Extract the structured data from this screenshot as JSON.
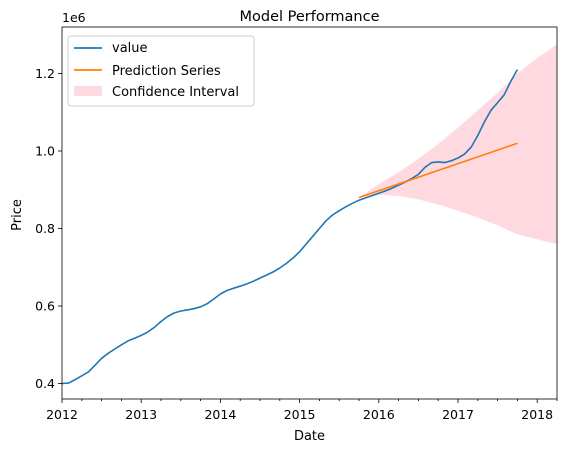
{
  "chart_data": {
    "type": "line",
    "title": "Model Performance",
    "xlabel": "Date",
    "ylabel": "Price",
    "y_offset_label": "1e6",
    "xlim": [
      "2012-01",
      "2018-04"
    ],
    "ylim": [
      360000,
      1320000
    ],
    "x_ticks": [
      "2012",
      "2013",
      "2014",
      "2015",
      "2016",
      "2017",
      "2018"
    ],
    "y_ticks": [
      {
        "value": 400000,
        "label": "0.4"
      },
      {
        "value": 600000,
        "label": "0.6"
      },
      {
        "value": 800000,
        "label": "0.8"
      },
      {
        "value": 1000000,
        "label": "1.0"
      },
      {
        "value": 1200000,
        "label": "1.2"
      }
    ],
    "grid": false,
    "legend_position": "top-left",
    "series": [
      {
        "name": "value",
        "color": "#1f77b4",
        "points": [
          [
            "2012-01",
            400000
          ],
          [
            "2012-02",
            401000
          ],
          [
            "2012-03",
            410000
          ],
          [
            "2012-04",
            420000
          ],
          [
            "2012-05",
            430000
          ],
          [
            "2012-06",
            447000
          ],
          [
            "2012-07",
            465000
          ],
          [
            "2012-08",
            478000
          ],
          [
            "2012-09",
            489000
          ],
          [
            "2012-10",
            500000
          ],
          [
            "2012-11",
            510000
          ],
          [
            "2012-12",
            517000
          ],
          [
            "2013-01",
            524000
          ],
          [
            "2013-02",
            533000
          ],
          [
            "2013-03",
            545000
          ],
          [
            "2013-04",
            560000
          ],
          [
            "2013-05",
            573000
          ],
          [
            "2013-06",
            582000
          ],
          [
            "2013-07",
            587000
          ],
          [
            "2013-08",
            590000
          ],
          [
            "2013-09",
            593000
          ],
          [
            "2013-10",
            598000
          ],
          [
            "2013-11",
            606000
          ],
          [
            "2013-12",
            618000
          ],
          [
            "2014-01",
            631000
          ],
          [
            "2014-02",
            640000
          ],
          [
            "2014-03",
            646000
          ],
          [
            "2014-04",
            651000
          ],
          [
            "2014-05",
            657000
          ],
          [
            "2014-06",
            664000
          ],
          [
            "2014-07",
            672000
          ],
          [
            "2014-08",
            680000
          ],
          [
            "2014-09",
            688000
          ],
          [
            "2014-10",
            698000
          ],
          [
            "2014-11",
            710000
          ],
          [
            "2014-12",
            724000
          ],
          [
            "2015-01",
            740000
          ],
          [
            "2015-02",
            760000
          ],
          [
            "2015-03",
            780000
          ],
          [
            "2015-04",
            800000
          ],
          [
            "2015-05",
            820000
          ],
          [
            "2015-06",
            835000
          ],
          [
            "2015-07",
            846000
          ],
          [
            "2015-08",
            856000
          ],
          [
            "2015-09",
            865000
          ],
          [
            "2015-10",
            873000
          ],
          [
            "2015-11",
            879000
          ],
          [
            "2015-12",
            885000
          ],
          [
            "2016-01",
            891000
          ],
          [
            "2016-02",
            897000
          ],
          [
            "2016-03",
            904000
          ],
          [
            "2016-04",
            912000
          ],
          [
            "2016-05",
            920000
          ],
          [
            "2016-06",
            929000
          ],
          [
            "2016-07",
            940000
          ],
          [
            "2016-08",
            958000
          ],
          [
            "2016-09",
            970000
          ],
          [
            "2016-10",
            972000
          ],
          [
            "2016-11",
            970000
          ],
          [
            "2016-12",
            975000
          ],
          [
            "2017-01",
            982000
          ],
          [
            "2017-02",
            992000
          ],
          [
            "2017-03",
            1010000
          ],
          [
            "2017-04",
            1040000
          ],
          [
            "2017-05",
            1075000
          ],
          [
            "2017-06",
            1105000
          ],
          [
            "2017-07",
            1125000
          ],
          [
            "2017-08",
            1145000
          ],
          [
            "2017-09",
            1180000
          ],
          [
            "2017-10",
            1210000
          ]
        ]
      },
      {
        "name": "Prediction Series",
        "color": "#ff7f0e",
        "points": [
          [
            "2015-10",
            880000
          ],
          [
            "2017-10",
            1020000
          ]
        ]
      }
    ],
    "confidence_interval": {
      "name": "Confidence Interval",
      "color": "#ffc0cb",
      "opacity": 0.6,
      "points": [
        {
          "x": "2015-10",
          "lower": 880000,
          "upper": 880000
        },
        {
          "x": "2016-01",
          "lower": 887000,
          "upper": 915000
        },
        {
          "x": "2016-04",
          "lower": 884000,
          "upper": 945000
        },
        {
          "x": "2016-07",
          "lower": 875000,
          "upper": 980000
        },
        {
          "x": "2016-10",
          "lower": 862000,
          "upper": 1018000
        },
        {
          "x": "2017-01",
          "lower": 846000,
          "upper": 1060000
        },
        {
          "x": "2017-04",
          "lower": 828000,
          "upper": 1105000
        },
        {
          "x": "2017-07",
          "lower": 808000,
          "upper": 1150000
        },
        {
          "x": "2017-10",
          "lower": 785000,
          "upper": 1200000
        },
        {
          "x": "2018-01",
          "lower": 772000,
          "upper": 1240000
        },
        {
          "x": "2018-04",
          "lower": 760000,
          "upper": 1275000
        }
      ]
    }
  }
}
